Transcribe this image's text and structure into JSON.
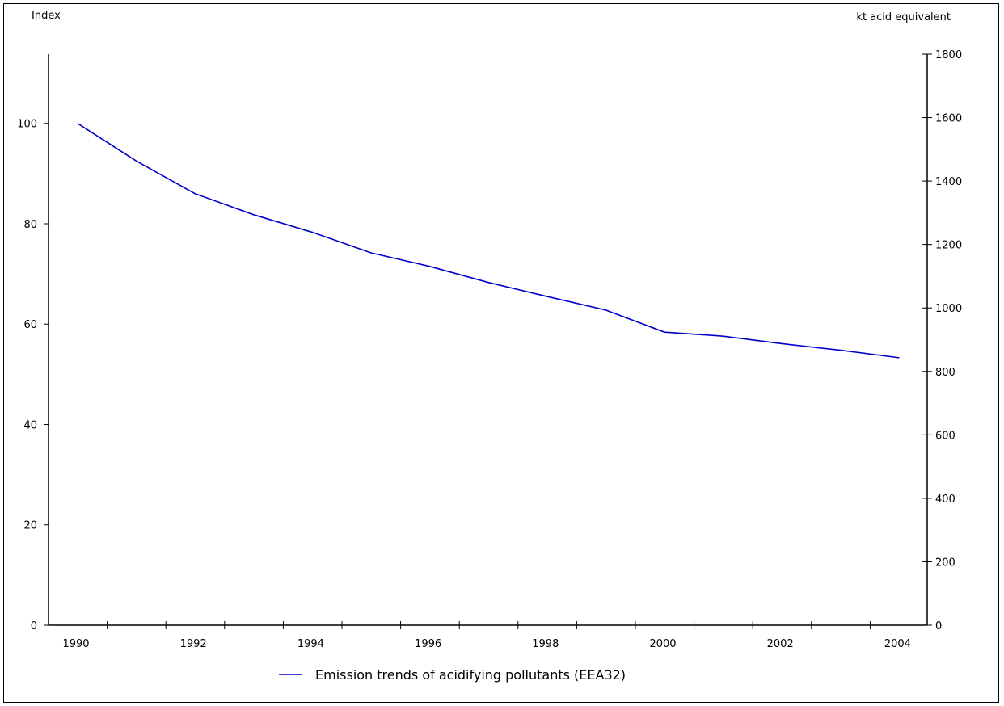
{
  "chart_data": {
    "type": "line",
    "title": "",
    "left_axis": {
      "label": "Index",
      "ylim": [
        0,
        113.8
      ],
      "ticks": [
        0,
        20,
        40,
        60,
        80,
        100
      ]
    },
    "right_axis": {
      "label": "kt acid equivalent",
      "ylim": [
        0,
        1800
      ],
      "ticks": [
        0,
        200,
        400,
        600,
        800,
        1000,
        1200,
        1400,
        1600,
        1800
      ]
    },
    "x": [
      1990,
      1991,
      1992,
      1993,
      1994,
      1995,
      1996,
      1997,
      1998,
      1999,
      2000,
      2001,
      2002,
      2003,
      2004
    ],
    "x_tick_labels": [
      "1990",
      "1992",
      "1994",
      "1996",
      "1998",
      "2000",
      "2002",
      "2004"
    ],
    "series": [
      {
        "name": "Emission trends of acidifying pollutants (EEA32)",
        "color": "#0000cc",
        "axis": "left",
        "values": [
          100,
          92.5,
          86,
          81.8,
          78.3,
          74.2,
          71.5,
          68.3,
          65.5,
          62.8,
          58.4,
          57.6,
          56.1,
          54.8,
          53.3
        ]
      }
    ],
    "legend_position": "bottom-center",
    "grid": false
  }
}
